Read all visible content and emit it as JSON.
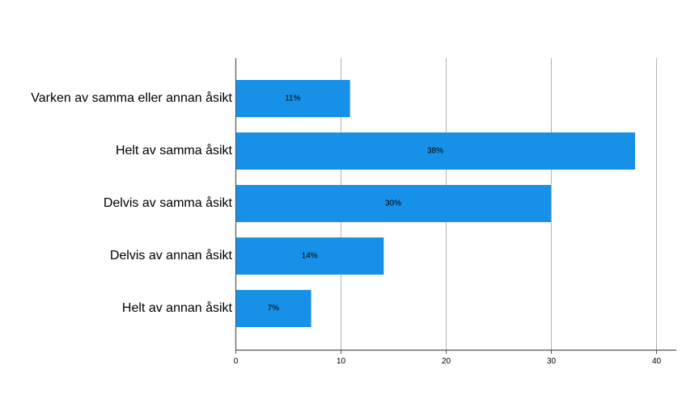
{
  "chart_data": {
    "type": "bar",
    "orientation": "horizontal",
    "categories": [
      "Varken av samma eller annan åsikt",
      "Helt av samma åsikt",
      "Delvis av samma åsikt",
      "Delvis av annan åsikt",
      "Helt av annan åsikt"
    ],
    "values": [
      10.9,
      38.0,
      30.0,
      14.1,
      7.2
    ],
    "data_labels": [
      "11%",
      "38%",
      "30%",
      "14%",
      "7%"
    ],
    "xlim": [
      0,
      42
    ],
    "xticks": [
      0,
      10,
      20,
      30,
      40
    ],
    "grid": "vertical",
    "title": "",
    "xlabel": "",
    "ylabel": "",
    "colors": {
      "bar": "#1791E8",
      "grid": "#B3B3B3",
      "axis": "#555555"
    }
  }
}
